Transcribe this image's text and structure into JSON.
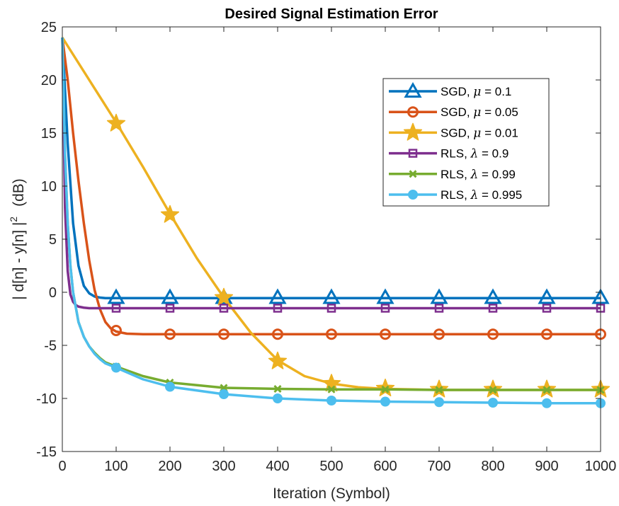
{
  "chart_data": {
    "type": "line",
    "title": "Desired Signal Estimation Error",
    "xlabel": "Iteration (Symbol)",
    "ylabel": "| d[n] - y[n] |² (dB)",
    "ylabel_main": "| d[n] - y[n] |",
    "ylabel_sup": "2",
    "ylabel_unit": "(dB)",
    "xlim": [
      0,
      1000
    ],
    "ylim": [
      -15,
      25
    ],
    "xticks": [
      0,
      100,
      200,
      300,
      400,
      500,
      600,
      700,
      800,
      900,
      1000
    ],
    "yticks": [
      -15,
      -10,
      -5,
      0,
      5,
      10,
      15,
      20,
      25
    ],
    "grid": false,
    "legend_position": "top-right",
    "series": [
      {
        "name": "SGD, μ = 0.1",
        "legend_prefix": "SGD, ",
        "legend_symbol": "μ",
        "legend_suffix": " = 0.1",
        "color": "#0072BD",
        "marker": "triangle",
        "x": [
          0,
          10,
          20,
          30,
          40,
          50,
          60,
          70,
          80,
          100,
          200,
          300,
          400,
          500,
          600,
          700,
          800,
          900,
          1000
        ],
        "y": [
          24,
          14,
          6.5,
          2.5,
          0.6,
          -0.1,
          -0.4,
          -0.5,
          -0.55,
          -0.55,
          -0.55,
          -0.55,
          -0.55,
          -0.55,
          -0.55,
          -0.55,
          -0.55,
          -0.55,
          -0.55
        ],
        "marker_x": [
          100,
          200,
          300,
          400,
          500,
          600,
          700,
          800,
          900,
          1000
        ],
        "marker_y": [
          -0.5,
          -0.5,
          -0.5,
          -0.5,
          -0.5,
          -0.5,
          -0.5,
          -0.5,
          -0.5,
          -0.5
        ]
      },
      {
        "name": "SGD, μ = 0.05",
        "legend_prefix": "SGD, ",
        "legend_symbol": "μ",
        "legend_suffix": " = 0.05",
        "color": "#D95319",
        "marker": "circle",
        "x": [
          0,
          10,
          20,
          30,
          40,
          50,
          60,
          70,
          80,
          90,
          100,
          120,
          150,
          200,
          300,
          400,
          500,
          600,
          700,
          800,
          900,
          1000
        ],
        "y": [
          24,
          20,
          15,
          10.5,
          6.5,
          3,
          0.2,
          -1.6,
          -2.8,
          -3.4,
          -3.7,
          -3.9,
          -3.95,
          -3.95,
          -3.95,
          -3.95,
          -3.95,
          -3.95,
          -3.95,
          -3.95,
          -3.95,
          -3.95
        ],
        "marker_x": [
          100,
          200,
          300,
          400,
          500,
          600,
          700,
          800,
          900,
          1000
        ],
        "marker_y": [
          -3.6,
          -3.95,
          -3.95,
          -3.95,
          -3.95,
          -3.95,
          -3.95,
          -3.95,
          -3.95,
          -3.95
        ]
      },
      {
        "name": "SGD, μ = 0.01",
        "legend_prefix": "SGD, ",
        "legend_symbol": "μ",
        "legend_suffix": " = 0.01",
        "color": "#EDB120",
        "marker": "star",
        "x": [
          0,
          50,
          100,
          150,
          200,
          250,
          300,
          350,
          400,
          450,
          500,
          550,
          600,
          650,
          700,
          800,
          900,
          1000
        ],
        "y": [
          24,
          20,
          16,
          11.8,
          7.4,
          3.2,
          -0.5,
          -3.8,
          -6.4,
          -7.9,
          -8.6,
          -8.95,
          -9.1,
          -9.15,
          -9.2,
          -9.2,
          -9.2,
          -9.2
        ],
        "marker_x": [
          100,
          200,
          300,
          400,
          500,
          600,
          700,
          800,
          900,
          1000
        ],
        "marker_y": [
          15.9,
          7.3,
          -0.5,
          -6.5,
          -8.6,
          -9.05,
          -9.15,
          -9.15,
          -9.15,
          -9.15
        ]
      },
      {
        "name": "RLS, λ = 0.9",
        "legend_prefix": "RLS, ",
        "legend_symbol": "λ",
        "legend_suffix": " = 0.9",
        "color": "#7E2F8E",
        "marker": "square",
        "x": [
          0,
          5,
          10,
          15,
          20,
          25,
          30,
          40,
          50,
          100,
          200,
          300,
          400,
          500,
          600,
          700,
          800,
          900,
          1000
        ],
        "y": [
          24,
          8,
          2,
          -0.2,
          -0.9,
          -1.2,
          -1.35,
          -1.45,
          -1.5,
          -1.5,
          -1.5,
          -1.5,
          -1.5,
          -1.5,
          -1.5,
          -1.5,
          -1.5,
          -1.5,
          -1.5
        ],
        "marker_x": [
          100,
          200,
          300,
          400,
          500,
          600,
          700,
          800,
          900,
          1000
        ],
        "marker_y": [
          -1.5,
          -1.5,
          -1.5,
          -1.5,
          -1.5,
          -1.5,
          -1.5,
          -1.5,
          -1.5,
          -1.5
        ]
      },
      {
        "name": "RLS, λ = 0.99",
        "legend_prefix": "RLS, ",
        "legend_symbol": "λ",
        "legend_suffix": " = 0.99",
        "color": "#77AC30",
        "marker": "x",
        "x": [
          0,
          5,
          10,
          15,
          20,
          30,
          40,
          50,
          60,
          70,
          80,
          100,
          150,
          200,
          300,
          400,
          500,
          600,
          700,
          800,
          900,
          1000
        ],
        "y": [
          24,
          13,
          6.5,
          2.5,
          0,
          -2.8,
          -4.2,
          -5.1,
          -5.7,
          -6.2,
          -6.6,
          -7.0,
          -7.9,
          -8.5,
          -9.0,
          -9.1,
          -9.15,
          -9.15,
          -9.2,
          -9.2,
          -9.2,
          -9.2
        ],
        "marker_x": [
          100,
          200,
          300,
          400,
          500,
          600,
          700,
          800,
          900,
          1000
        ],
        "marker_y": [
          -7.0,
          -8.5,
          -9.0,
          -9.1,
          -9.15,
          -9.15,
          -9.2,
          -9.2,
          -9.2,
          -9.2
        ]
      },
      {
        "name": "RLS, λ = 0.995",
        "legend_prefix": "RLS, ",
        "legend_symbol": "λ",
        "legend_suffix": " = 0.995",
        "color": "#4DBEEE",
        "marker": "circle-filled",
        "x": [
          0,
          5,
          10,
          15,
          20,
          30,
          40,
          50,
          60,
          70,
          80,
          100,
          150,
          200,
          300,
          400,
          500,
          600,
          700,
          800,
          900,
          1000
        ],
        "y": [
          24,
          13,
          6.5,
          2.5,
          0,
          -2.8,
          -4.2,
          -5.1,
          -5.8,
          -6.3,
          -6.7,
          -7.1,
          -8.2,
          -8.9,
          -9.6,
          -10.0,
          -10.2,
          -10.3,
          -10.35,
          -10.4,
          -10.45,
          -10.45
        ],
        "marker_x": [
          100,
          200,
          300,
          400,
          500,
          600,
          700,
          800,
          900,
          1000
        ],
        "marker_y": [
          -7.1,
          -8.9,
          -9.6,
          -10.0,
          -10.2,
          -10.3,
          -10.35,
          -10.4,
          -10.45,
          -10.45
        ]
      }
    ]
  }
}
